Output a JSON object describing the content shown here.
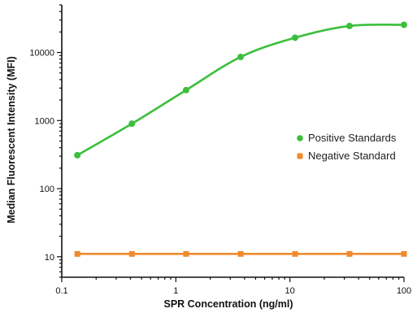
{
  "chart_data": {
    "type": "line",
    "xscale": "log",
    "yscale": "log",
    "xlim": [
      0.1,
      100
    ],
    "ylim": [
      5,
      50000
    ],
    "xticks": [
      0.1,
      1,
      10,
      100
    ],
    "xtick_labels": [
      "0.1",
      "1",
      "10",
      "100"
    ],
    "yticks": [
      10,
      100,
      1000,
      10000
    ],
    "ytick_labels": [
      "10",
      "100",
      "1000",
      "10000"
    ],
    "xlabel": "SPR Concentration (ng/ml)",
    "ylabel": "Median Fluorescent Intensity (MFI)",
    "legend_position": "right",
    "grid": false,
    "series": [
      {
        "name": "Positive Standards",
        "color": "#3cbf3c",
        "marker": "circle",
        "x": [
          0.137,
          0.412,
          1.23,
          3.7,
          11.1,
          33.3,
          100
        ],
        "y": [
          310,
          900,
          2800,
          8600,
          16500,
          24500,
          25500
        ]
      },
      {
        "name": "Negative Standard",
        "color": "#f08a2c",
        "marker": "square",
        "x": [
          0.137,
          0.412,
          1.23,
          3.7,
          11.1,
          33.3,
          100
        ],
        "y": [
          11,
          11,
          11,
          11,
          11,
          11,
          11
        ]
      }
    ]
  }
}
